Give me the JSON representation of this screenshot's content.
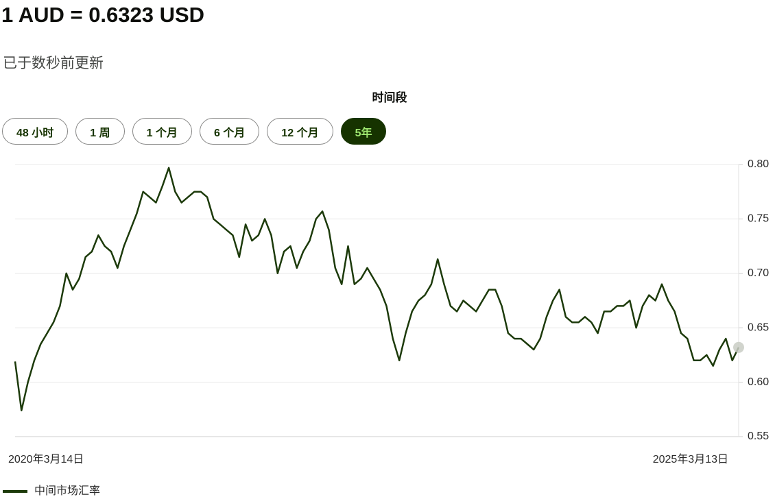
{
  "header": {
    "title": "1 AUD = 0.6323 USD",
    "updated": "已于数秒前更新"
  },
  "period": {
    "label": "时间段",
    "options": [
      "48 小时",
      "1 周",
      "1 个月",
      "6 个月",
      "12 个月",
      "5年"
    ],
    "selected": 5
  },
  "chart_data": {
    "type": "line",
    "categories": [
      "2020年3月14日",
      null,
      null,
      null,
      null,
      null,
      null,
      null,
      null,
      null,
      null,
      null,
      null,
      null,
      null,
      null,
      null,
      null,
      null,
      null,
      null,
      null,
      null,
      null,
      null,
      null,
      null,
      null,
      null,
      null,
      null,
      null,
      null,
      null,
      null,
      null,
      null,
      null,
      null,
      null,
      null,
      null,
      null,
      null,
      null,
      null,
      null,
      null,
      null,
      null,
      null,
      null,
      null,
      null,
      null,
      null,
      null,
      null,
      null,
      null,
      null,
      null,
      null,
      null,
      null,
      null,
      null,
      null,
      null,
      null,
      null,
      null,
      null,
      null,
      null,
      null,
      null,
      null,
      null,
      null,
      null,
      null,
      null,
      null,
      null,
      null,
      null,
      null,
      null,
      null,
      null,
      null,
      null,
      null,
      null,
      null,
      null,
      null,
      null,
      null,
      null,
      null,
      null,
      null,
      null,
      null,
      null,
      null,
      null,
      null,
      null,
      null,
      null,
      "2025年3月13日"
    ],
    "series": [
      {
        "name": "中间市场汇率",
        "color": "#1c3a0a",
        "values": [
          0.619,
          0.574,
          0.6,
          0.62,
          0.635,
          0.645,
          0.655,
          0.67,
          0.7,
          0.685,
          0.695,
          0.715,
          0.72,
          0.735,
          0.725,
          0.72,
          0.705,
          0.725,
          0.74,
          0.755,
          0.775,
          0.77,
          0.765,
          0.78,
          0.797,
          0.775,
          0.765,
          0.77,
          0.775,
          0.775,
          0.77,
          0.75,
          0.745,
          0.74,
          0.735,
          0.715,
          0.745,
          0.73,
          0.735,
          0.75,
          0.735,
          0.7,
          0.72,
          0.725,
          0.705,
          0.72,
          0.73,
          0.75,
          0.757,
          0.74,
          0.705,
          0.69,
          0.725,
          0.69,
          0.695,
          0.705,
          0.695,
          0.685,
          0.67,
          0.64,
          0.62,
          0.645,
          0.665,
          0.675,
          0.68,
          0.69,
          0.713,
          0.69,
          0.67,
          0.665,
          0.675,
          0.67,
          0.665,
          0.675,
          0.685,
          0.685,
          0.67,
          0.645,
          0.64,
          0.64,
          0.635,
          0.63,
          0.64,
          0.66,
          0.675,
          0.685,
          0.66,
          0.655,
          0.655,
          0.66,
          0.655,
          0.645,
          0.665,
          0.665,
          0.67,
          0.67,
          0.675,
          0.65,
          0.67,
          0.68,
          0.675,
          0.69,
          0.675,
          0.665,
          0.645,
          0.64,
          0.62,
          0.62,
          0.625,
          0.615,
          0.63,
          0.64,
          0.62,
          0.632
        ]
      }
    ],
    "ylim": [
      0.55,
      0.8
    ],
    "yticks": [
      0.55,
      {
        "value": 0.6,
        "label": "0.60"
      },
      0.65,
      {
        "value": 0.7,
        "label": "0.70"
      },
      0.75,
      {
        "value": 0.8,
        "label": "0.80"
      }
    ],
    "grid": true
  }
}
